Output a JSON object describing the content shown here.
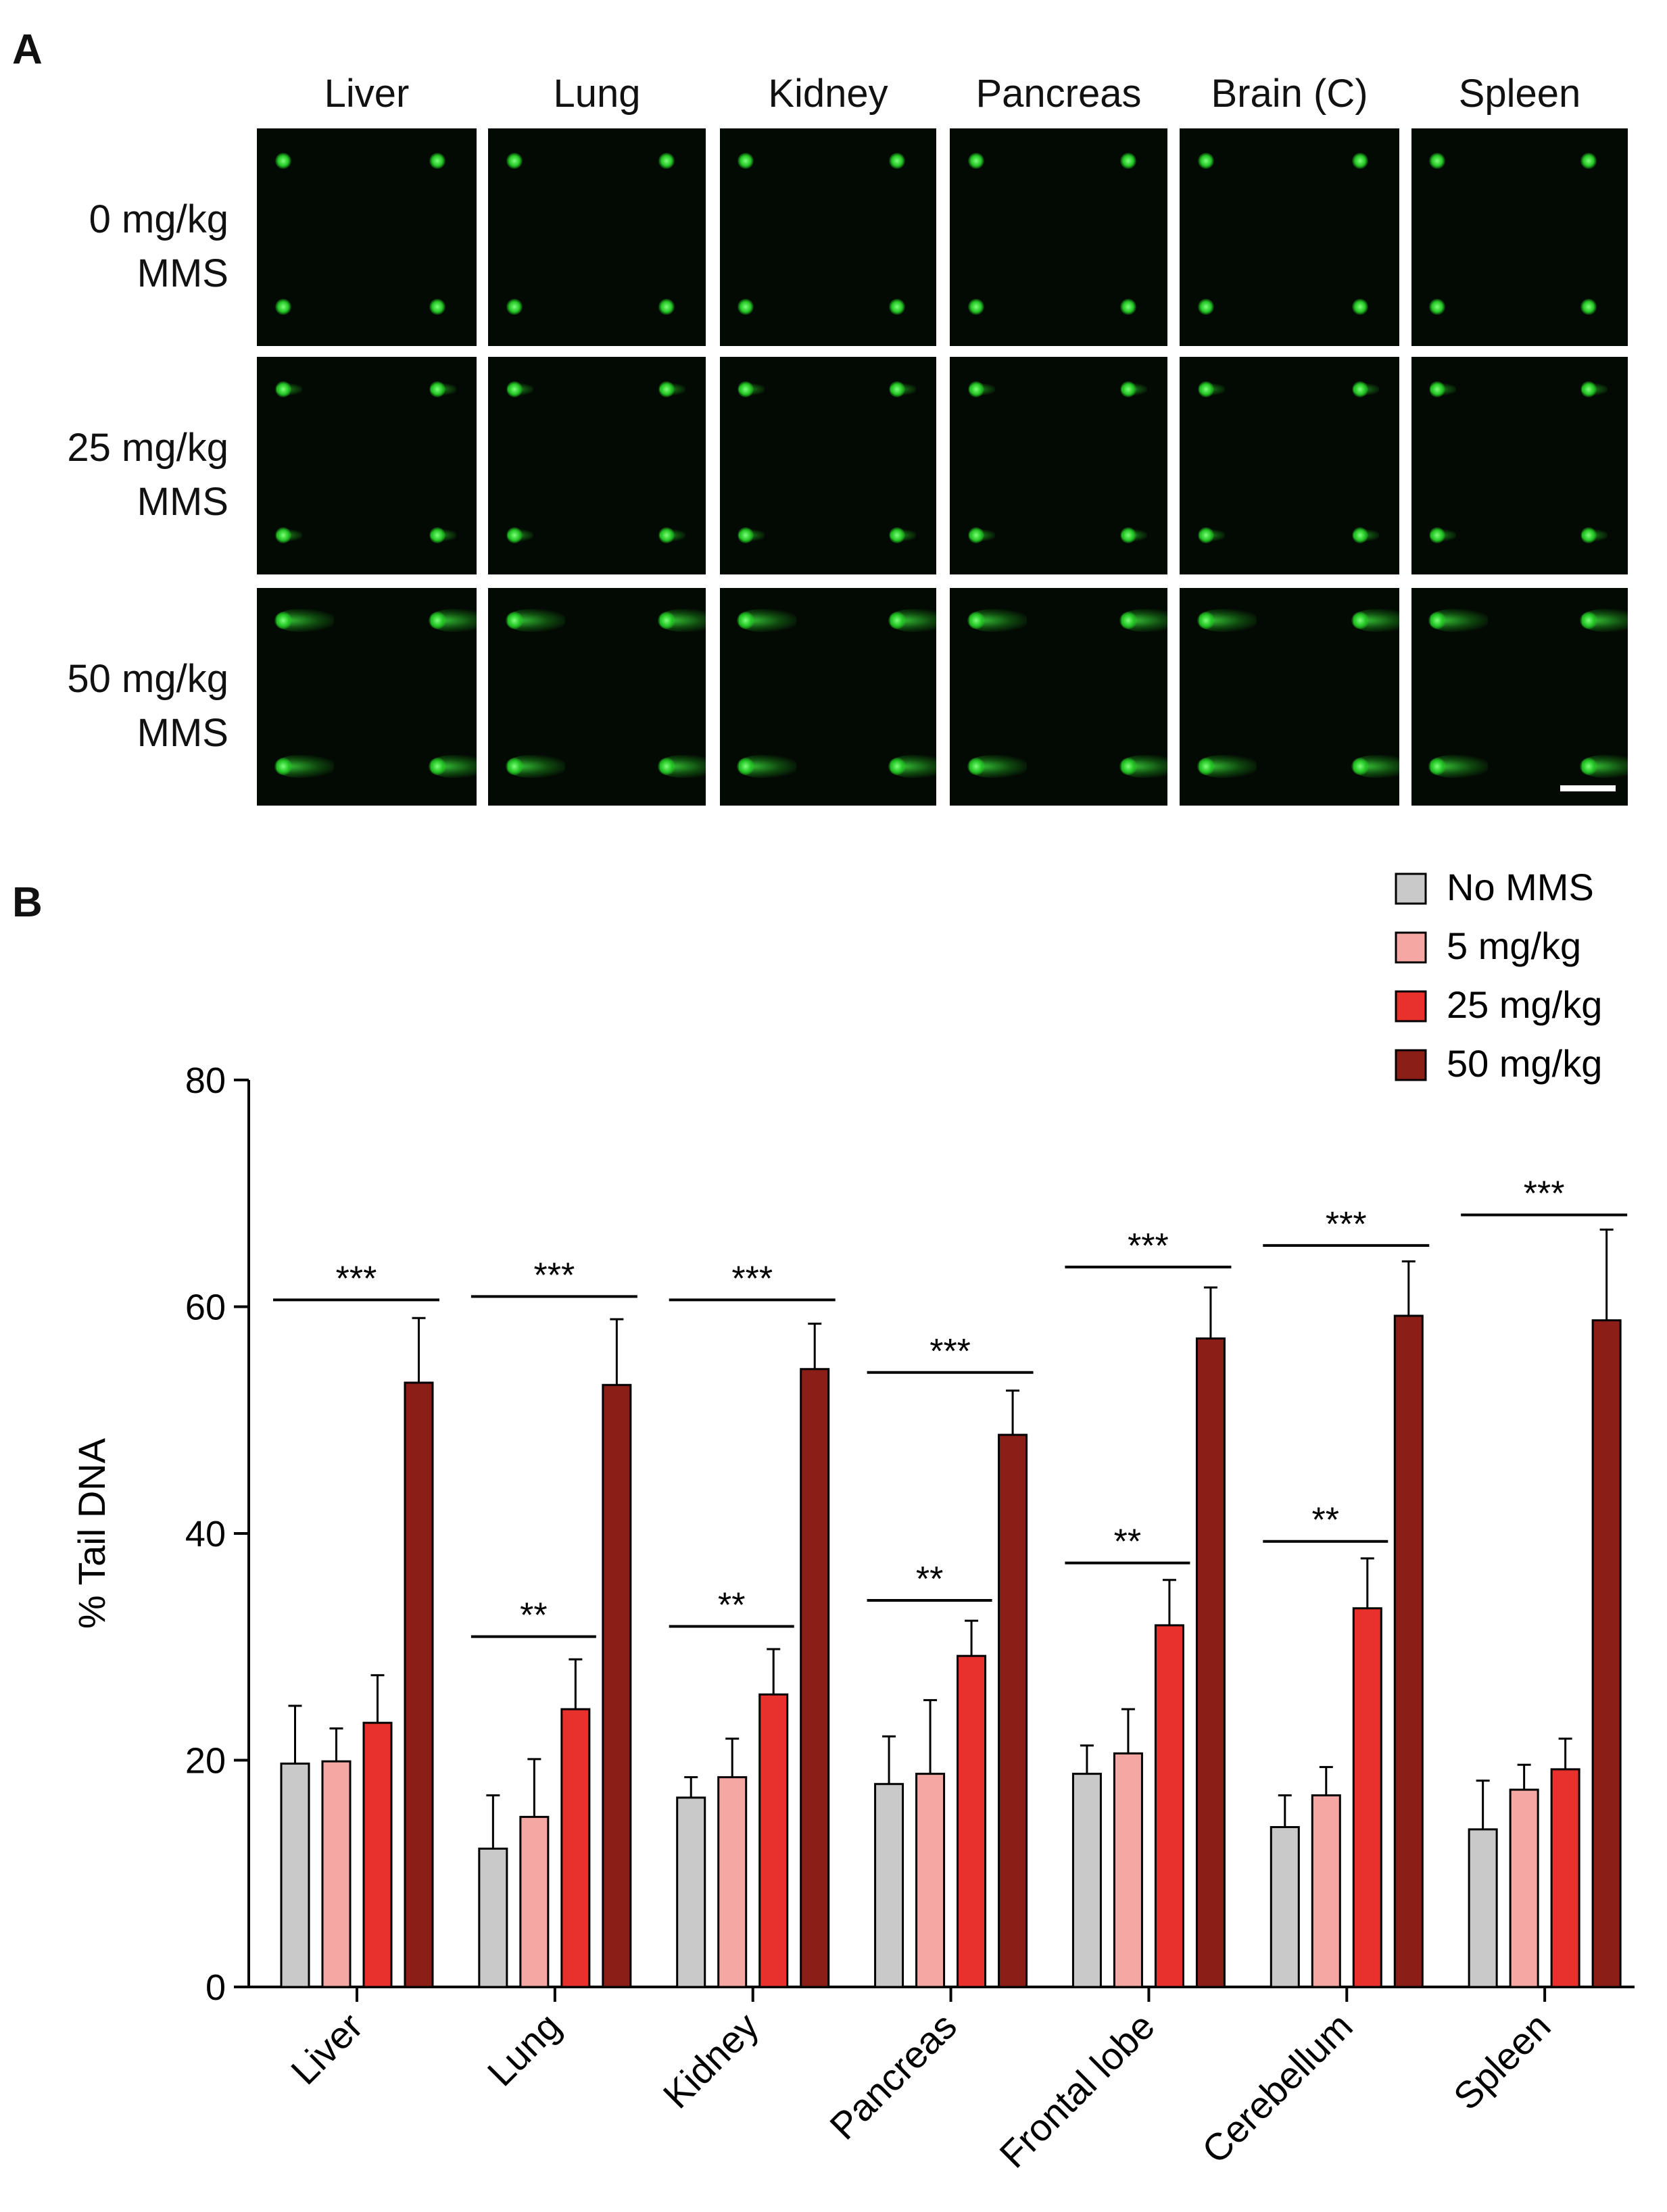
{
  "panel_a": {
    "letter": "A",
    "columns": [
      "Liver",
      "Lung",
      "Kidney",
      "Pancreas",
      "Brain (C)",
      "Spleen"
    ],
    "rows": [
      {
        "line1": "0 mg/kg",
        "line2": "MMS"
      },
      {
        "line1": "25 mg/kg",
        "line2": "MMS"
      },
      {
        "line1": "50 mg/kg",
        "line2": "MMS"
      }
    ],
    "image_description": "comet assay fluorescence micrographs (green)"
  },
  "panel_b": {
    "letter": "B"
  },
  "colors": {
    "no_mms": "#c9c9c9",
    "dose5": "#f5a8a3",
    "dose25": "#e8312c",
    "dose50": "#8b1f17",
    "micro_bg": "#030a03",
    "cell_green": "#2fd22f"
  },
  "chart_data": {
    "type": "bar",
    "title": "",
    "xlabel": "",
    "ylabel": "% Tail DNA",
    "ylim": [
      0,
      80
    ],
    "yticks": [
      0,
      20,
      40,
      60,
      80
    ],
    "categories": [
      "Liver",
      "Lung",
      "Kidney",
      "Pancreas",
      "Frontal lobe",
      "Cerebellum",
      "Spleen"
    ],
    "series": [
      {
        "name": "No MMS",
        "color": "#c9c9c9",
        "values": [
          19.7,
          12.2,
          16.7,
          17.9,
          18.8,
          14.1,
          13.9
        ],
        "errors": [
          5.1,
          4.7,
          1.8,
          4.2,
          2.5,
          2.8,
          4.3
        ]
      },
      {
        "name": "5 mg/kg",
        "color": "#f5a8a3",
        "values": [
          19.9,
          15.0,
          18.5,
          18.8,
          20.6,
          16.9,
          17.4
        ],
        "errors": [
          2.9,
          5.1,
          3.4,
          6.5,
          3.9,
          2.5,
          2.2
        ]
      },
      {
        "name": "25 mg/kg",
        "color": "#e8312c",
        "values": [
          23.3,
          24.5,
          25.8,
          29.2,
          31.9,
          33.4,
          19.2
        ],
        "errors": [
          4.2,
          4.4,
          4.0,
          3.1,
          4.0,
          4.4,
          2.7
        ]
      },
      {
        "name": "50 mg/kg",
        "color": "#8b1f17",
        "values": [
          53.3,
          53.1,
          54.5,
          48.7,
          57.2,
          59.2,
          58.8
        ],
        "errors": [
          5.7,
          5.8,
          4.0,
          3.9,
          4.5,
          4.8,
          8.0
        ]
      }
    ],
    "significance": [
      {
        "category": 0,
        "from_series": 0,
        "to_series": 3,
        "label": "***",
        "y": 60.6
      },
      {
        "category": 1,
        "from_series": 0,
        "to_series": 3,
        "label": "***",
        "y": 60.9
      },
      {
        "category": 1,
        "from_series": 0,
        "to_series": 2,
        "label": "**",
        "y": 30.9
      },
      {
        "category": 2,
        "from_series": 0,
        "to_series": 3,
        "label": "***",
        "y": 60.6
      },
      {
        "category": 2,
        "from_series": 0,
        "to_series": 2,
        "label": "**",
        "y": 31.8
      },
      {
        "category": 3,
        "from_series": 0,
        "to_series": 3,
        "label": "***",
        "y": 54.2
      },
      {
        "category": 3,
        "from_series": 0,
        "to_series": 2,
        "label": "**",
        "y": 34.1
      },
      {
        "category": 4,
        "from_series": 0,
        "to_series": 3,
        "label": "***",
        "y": 63.5
      },
      {
        "category": 4,
        "from_series": 0,
        "to_series": 2,
        "label": "**",
        "y": 37.4
      },
      {
        "category": 5,
        "from_series": 0,
        "to_series": 3,
        "label": "***",
        "y": 65.4
      },
      {
        "category": 5,
        "from_series": 0,
        "to_series": 2,
        "label": "**",
        "y": 39.3
      },
      {
        "category": 6,
        "from_series": 0,
        "to_series": 3,
        "label": "***",
        "y": 68.1
      }
    ],
    "legend": {
      "placement": "top-right"
    },
    "grid": false
  }
}
